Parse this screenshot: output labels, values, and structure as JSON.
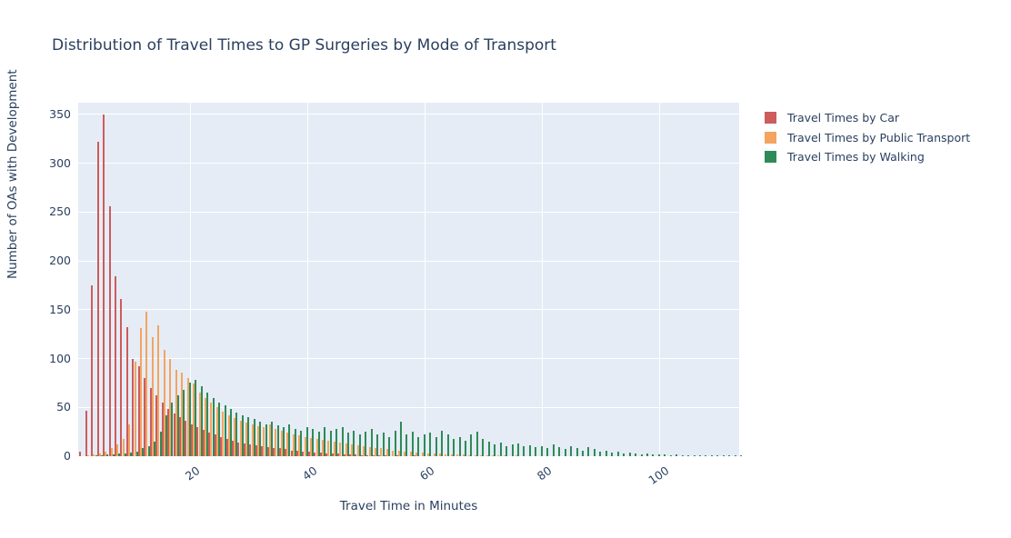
{
  "title": "Distribution of Travel Times to GP Surgeries by Mode of Transport",
  "colors": {
    "background": "#ffffff",
    "plot_background": "#e5ecf6",
    "grid": "#ffffff",
    "text": "#2a3f5f"
  },
  "chart_data": {
    "type": "bar",
    "subtype": "grouped-histogram",
    "title": "Distribution of Travel Times to GP Surgeries by Mode of Transport",
    "xlabel": "Travel Time in Minutes",
    "ylabel": "Number of OAs with Development",
    "x_bin_start": 1,
    "x_bin_size": 1,
    "xlim": [
      0.8,
      113.5
    ],
    "ylim": [
      0,
      362
    ],
    "xticks": [
      20,
      40,
      60,
      80,
      100
    ],
    "yticks": [
      0,
      50,
      100,
      150,
      200,
      250,
      300,
      350
    ],
    "grid": true,
    "legend_position": "top-right-outside",
    "series": [
      {
        "name": "Travel Times by Car",
        "color": "#cd5c5c",
        "values": [
          5,
          47,
          175,
          322,
          350,
          256,
          184,
          161,
          132,
          100,
          92,
          80,
          70,
          62,
          55,
          48,
          44,
          40,
          36,
          33,
          30,
          27,
          24,
          22,
          20,
          18,
          16,
          14,
          13,
          12,
          11,
          10,
          9,
          8,
          8,
          7,
          6,
          6,
          5,
          5,
          4,
          4,
          3,
          3,
          3,
          2,
          2,
          2,
          1,
          1,
          1,
          1,
          1,
          0,
          1,
          0,
          0,
          1,
          0,
          0,
          0,
          0,
          0,
          0,
          0,
          0,
          0,
          0,
          0,
          0,
          0,
          0,
          0,
          0,
          0,
          0,
          0,
          0,
          0,
          0,
          0,
          0,
          0,
          0,
          0,
          0,
          0,
          0,
          0,
          0,
          0,
          0,
          0,
          0,
          0,
          0,
          0,
          0,
          0,
          0,
          0,
          0,
          0,
          0,
          0,
          0,
          0,
          0,
          0,
          0,
          0,
          0,
          0
        ]
      },
      {
        "name": "Travel Times by Public Transport",
        "color": "#f4a460",
        "values": [
          0,
          1,
          2,
          3,
          5,
          8,
          12,
          18,
          33,
          97,
          131,
          148,
          122,
          134,
          109,
          100,
          88,
          86,
          80,
          74,
          65,
          60,
          55,
          50,
          46,
          42,
          39,
          36,
          34,
          33,
          31,
          30,
          33,
          28,
          26,
          24,
          22,
          21,
          20,
          19,
          18,
          17,
          16,
          15,
          14,
          13,
          12,
          11,
          10,
          9,
          8,
          8,
          7,
          6,
          6,
          5,
          5,
          4,
          4,
          3,
          3,
          3,
          2,
          2,
          2,
          2,
          1,
          1,
          1,
          1,
          1,
          1,
          1,
          0,
          1,
          0,
          0,
          0,
          0,
          0,
          0,
          0,
          0,
          0,
          0,
          0,
          0,
          0,
          0,
          0,
          0,
          0,
          0,
          0,
          0,
          0,
          0,
          0,
          0,
          0,
          0,
          0,
          0,
          0,
          0,
          0,
          0,
          0,
          0,
          0,
          0,
          0,
          0
        ]
      },
      {
        "name": "Travel Times by Walking",
        "color": "#2e8b57",
        "values": [
          0,
          0,
          1,
          1,
          2,
          2,
          3,
          3,
          4,
          5,
          8,
          10,
          15,
          25,
          42,
          55,
          62,
          68,
          75,
          78,
          72,
          65,
          60,
          55,
          52,
          48,
          45,
          42,
          40,
          38,
          35,
          33,
          35,
          32,
          30,
          33,
          28,
          26,
          30,
          28,
          25,
          30,
          26,
          28,
          30,
          24,
          26,
          22,
          25,
          28,
          22,
          24,
          20,
          26,
          35,
          22,
          25,
          20,
          22,
          24,
          20,
          26,
          22,
          18,
          20,
          16,
          22,
          25,
          18,
          15,
          12,
          14,
          10,
          12,
          13,
          10,
          11,
          9,
          10,
          8,
          12,
          9,
          7,
          10,
          8,
          6,
          9,
          7,
          5,
          6,
          4,
          5,
          3,
          4,
          3,
          2,
          3,
          2,
          2,
          2,
          1,
          2,
          1,
          1,
          1,
          1,
          1,
          1,
          1,
          1,
          1,
          1,
          1
        ]
      }
    ]
  }
}
